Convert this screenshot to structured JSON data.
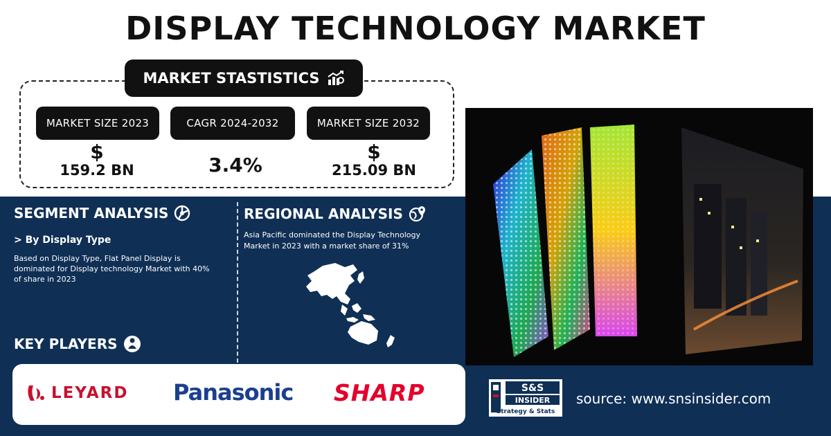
{
  "title": "DISPLAY TECHNOLOGY MARKET",
  "stats": {
    "header": "MARKET STASTISTICS",
    "items": [
      {
        "label": "MARKET SIZE 2023",
        "symbol": "$",
        "value": "159.2 BN"
      },
      {
        "label": "CAGR 2024-2032",
        "symbol": "",
        "value": "3.4%"
      },
      {
        "label": "MARKET SIZE 2032",
        "symbol": "$",
        "value": "215.09 BN"
      }
    ]
  },
  "segment": {
    "heading": "SEGMENT ANALYSIS",
    "subheading": "> By Display Type",
    "text": "Based on Display Type, Flat Panel Display is dominated for Display technology Market with 40% of share in 2023"
  },
  "regional": {
    "heading": "REGIONAL ANALYSIS",
    "text": "Asia Pacific dominated the Display Technology Market in 2023 with a market share of 31%"
  },
  "key_players": {
    "heading": "KEY PLAYERS",
    "logos": [
      "LEYARD",
      "Panasonic",
      "SHARP"
    ]
  },
  "footer": {
    "brand_top": "S&S",
    "brand_mid": "INSIDER",
    "brand_bottom": "Strategy & Stats",
    "source": "source: www.snsinsider.com"
  },
  "colors": {
    "navy": "#0f2f55",
    "leyard_red": "#c8102e",
    "panasonic_blue": "#1b3f8f",
    "sharp_red": "#e4002b"
  }
}
